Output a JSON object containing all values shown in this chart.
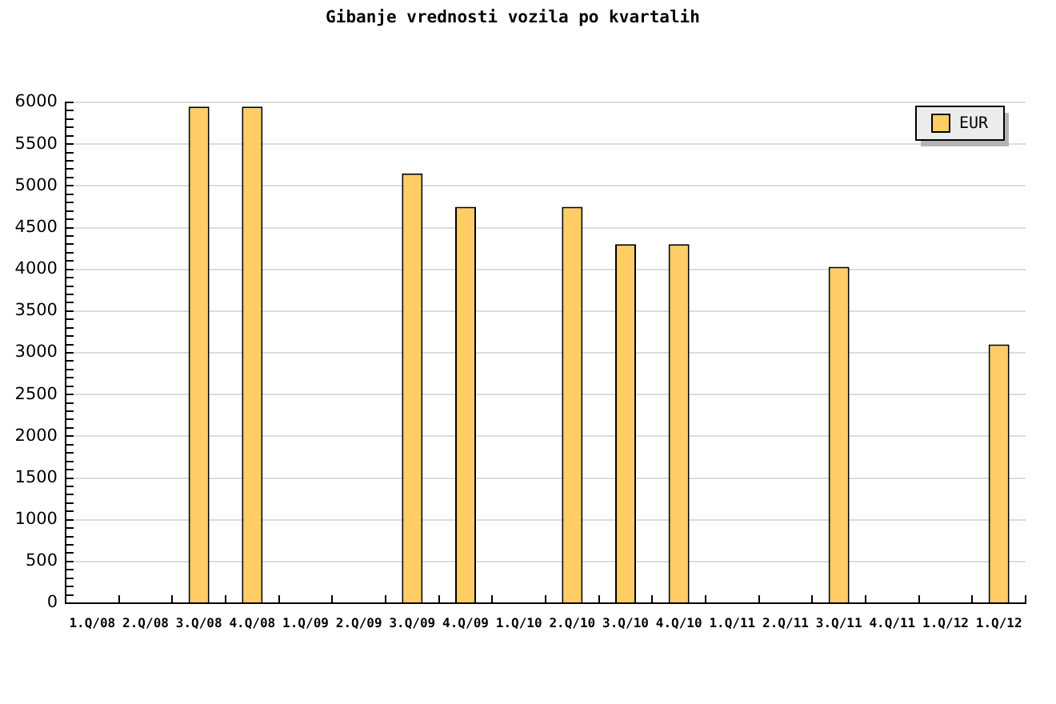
{
  "chart_data": {
    "type": "bar",
    "title": "Gibanje vrednosti vozila po kvartalih",
    "categories": [
      "1.Q/08",
      "2.Q/08",
      "3.Q/08",
      "4.Q/08",
      "1.Q/09",
      "2.Q/09",
      "3.Q/09",
      "4.Q/09",
      "1.Q/10",
      "2.Q/10",
      "3.Q/10",
      "4.Q/10",
      "1.Q/11",
      "2.Q/11",
      "3.Q/11",
      "4.Q/11",
      "1.Q/12",
      "1.Q/12"
    ],
    "series": [
      {
        "name": "EUR",
        "color": "#ffcc66",
        "values": [
          null,
          null,
          5950,
          5950,
          null,
          null,
          5150,
          4750,
          null,
          4750,
          4300,
          4300,
          null,
          null,
          4030,
          null,
          null,
          3100
        ]
      }
    ],
    "ylim": [
      0,
      6000
    ],
    "yticks": [
      0,
      {
        "value": 100,
        "label": null
      },
      {
        "value": 200,
        "label": null
      },
      {
        "value": 300,
        "label": null
      },
      {
        "value": 400,
        "label": null
      },
      500,
      {
        "value": 600,
        "label": null
      },
      {
        "value": 700,
        "label": null
      },
      {
        "value": 800,
        "label": null
      },
      {
        "value": 900,
        "label": null
      },
      1000,
      {
        "value": 1100,
        "label": null
      },
      {
        "value": 1200,
        "label": null
      },
      {
        "value": 1300,
        "label": null
      },
      {
        "value": 1400,
        "label": null
      },
      1500,
      {
        "value": 1600,
        "label": null
      },
      {
        "value": 1700,
        "label": null
      },
      {
        "value": 1800,
        "label": null
      },
      {
        "value": 1900,
        "label": null
      },
      2000,
      {
        "value": 2100,
        "label": null
      },
      {
        "value": 2200,
        "label": null
      },
      {
        "value": 2300,
        "label": null
      },
      {
        "value": 2400,
        "label": null
      },
      2500,
      {
        "value": 2600,
        "label": null
      },
      {
        "value": 2700,
        "label": null
      },
      {
        "value": 2800,
        "label": null
      },
      {
        "value": 2900,
        "label": null
      },
      3000,
      {
        "value": 3100,
        "label": null
      },
      {
        "value": 3200,
        "label": null
      },
      {
        "value": 3300,
        "label": null
      },
      {
        "value": 3400,
        "label": null
      },
      3500,
      {
        "value": 3600,
        "label": null
      },
      {
        "value": 3700,
        "label": null
      },
      {
        "value": 3800,
        "label": null
      },
      {
        "value": 3900,
        "label": null
      },
      4000,
      {
        "value": 4100,
        "label": null
      },
      {
        "value": 4200,
        "label": null
      },
      {
        "value": 4300,
        "label": null
      },
      {
        "value": 4400,
        "label": null
      },
      4500,
      {
        "value": 4600,
        "label": null
      },
      {
        "value": 4700,
        "label": null
      },
      {
        "value": 4800,
        "label": null
      },
      {
        "value": 4900,
        "label": null
      },
      5000,
      {
        "value": 5100,
        "label": null
      },
      {
        "value": 5200,
        "label": null
      },
      {
        "value": 5300,
        "label": null
      },
      {
        "value": 5400,
        "label": null
      },
      5500,
      {
        "value": 5600,
        "label": null
      },
      {
        "value": 5700,
        "label": null
      },
      {
        "value": 5800,
        "label": null
      },
      {
        "value": 5900,
        "label": null
      },
      6000
    ],
    "grid": "y",
    "legend": "top right"
  }
}
